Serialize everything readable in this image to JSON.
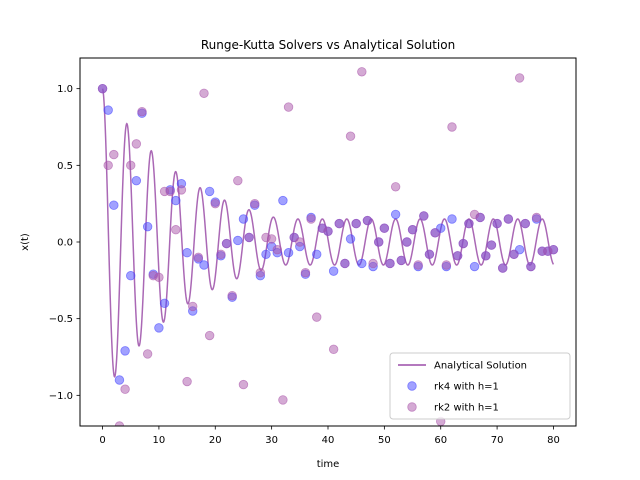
{
  "chart_data": {
    "type": "line",
    "title": "Runge-Kutta Solvers vs Analytical Solution",
    "xlabel": "time",
    "ylabel": "x(t)",
    "xlim": [
      -4,
      84
    ],
    "ylim": [
      -1.2,
      1.2
    ],
    "xticks": [
      0,
      10,
      20,
      30,
      40,
      50,
      60,
      70,
      80
    ],
    "xtick_labels": [
      "0",
      "10",
      "20",
      "30",
      "40",
      "50",
      "60",
      "70",
      "80"
    ],
    "yticks": [
      -1.0,
      -0.5,
      0.0,
      0.5,
      1.0
    ],
    "ytick_labels": [
      "−1.0",
      "−0.5",
      "0.0",
      "0.5",
      "1.0"
    ],
    "grid": false,
    "legend_position": "lower-right",
    "series": [
      {
        "name": "Analytical Solution",
        "kind": "line",
        "color": "#9b4da8",
        "model": {
          "amplitude": 1.0,
          "decay_rate": 0.06,
          "frequency": 1.45,
          "floor": 0.15
        }
      },
      {
        "name": "rk4 with h=1",
        "kind": "scatter",
        "color": "#4444ff",
        "x": [
          0,
          1,
          2,
          3,
          4,
          5,
          6,
          7,
          8,
          9,
          10,
          11,
          12,
          13,
          14,
          15,
          16,
          17,
          18,
          19,
          20,
          21,
          22,
          23,
          24,
          25,
          26,
          27,
          28,
          29,
          30,
          31,
          32,
          33,
          34,
          35,
          36,
          37,
          38,
          39,
          40,
          41,
          42,
          43,
          44,
          45,
          46,
          47,
          48,
          49,
          50,
          51,
          52,
          53,
          54,
          55,
          56,
          57,
          58,
          59,
          60,
          61,
          62,
          63,
          64,
          65,
          66,
          67,
          68,
          69,
          70,
          71,
          72,
          73,
          74,
          75,
          76,
          77,
          78,
          79,
          80
        ],
        "y": [
          1.0,
          0.86,
          0.24,
          -0.9,
          -0.71,
          -0.22,
          0.4,
          0.84,
          0.1,
          -0.21,
          -0.56,
          -0.4,
          0.34,
          0.27,
          0.38,
          -0.07,
          -0.45,
          -0.11,
          -0.15,
          0.33,
          0.26,
          -0.09,
          -0.01,
          -0.36,
          0.01,
          0.15,
          0.03,
          0.24,
          -0.22,
          -0.08,
          -0.03,
          -0.07,
          0.27,
          -0.07,
          0.03,
          -0.03,
          -0.21,
          0.16,
          -0.08,
          0.09,
          0.07,
          -0.19,
          0.12,
          -0.14,
          0.02,
          0.12,
          -0.14,
          0.14,
          -0.16,
          0.0,
          0.09,
          -0.14,
          0.18,
          -0.12,
          0.0,
          0.08,
          -0.16,
          0.17,
          -0.08,
          0.06,
          0.09,
          -0.16,
          0.15,
          -0.09,
          -0.01,
          0.12,
          -0.16,
          0.16,
          -0.09,
          -0.02,
          0.12,
          -0.17,
          0.15,
          -0.08,
          -0.05,
          0.12,
          -0.16,
          0.15,
          -0.06,
          -0.06,
          -0.05
        ]
      },
      {
        "name": "rk2 with h=1",
        "kind": "scatter",
        "color": "#aa55aa",
        "x": [
          0,
          1,
          2,
          3,
          4,
          5,
          6,
          7,
          8,
          9,
          10,
          11,
          12,
          13,
          14,
          15,
          16,
          17,
          18,
          19,
          20,
          21,
          22,
          23,
          24,
          25,
          26,
          27,
          28,
          29,
          30,
          31,
          32,
          33,
          34,
          35,
          36,
          37,
          38,
          39,
          40,
          41,
          42,
          43,
          44,
          45,
          46,
          47,
          48,
          49,
          50,
          51,
          52,
          53,
          54,
          55,
          56,
          57,
          58,
          59,
          60,
          61,
          62,
          63,
          64,
          65,
          66,
          67,
          68,
          69,
          70,
          71,
          72,
          73,
          74,
          75,
          76,
          77,
          78,
          79,
          80
        ],
        "y": [
          1.0,
          0.5,
          0.57,
          -1.2,
          -0.96,
          0.5,
          0.64,
          0.85,
          -0.73,
          -0.22,
          -0.23,
          0.33,
          0.33,
          0.08,
          0.34,
          -0.91,
          -0.42,
          -0.1,
          0.97,
          -0.61,
          0.25,
          -0.08,
          -0.01,
          -0.35,
          0.4,
          -0.93,
          0.03,
          0.25,
          -0.2,
          0.03,
          0.02,
          -0.05,
          -1.03,
          0.88,
          0.03,
          0.0,
          -0.2,
          0.15,
          -0.49,
          0.09,
          0.07,
          -0.7,
          0.12,
          -0.14,
          0.69,
          0.12,
          1.11,
          0.14,
          -0.14,
          0.0,
          0.09,
          -0.14,
          0.36,
          -0.12,
          0.0,
          0.08,
          -0.15,
          0.17,
          -0.08,
          0.06,
          -1.17,
          -0.15,
          0.75,
          -0.09,
          -0.01,
          0.12,
          0.18,
          0.16,
          -0.09,
          -0.02,
          0.12,
          -0.17,
          0.15,
          -0.08,
          1.07,
          0.12,
          -0.16,
          0.16,
          -0.06,
          -0.06,
          -0.05
        ]
      }
    ]
  }
}
